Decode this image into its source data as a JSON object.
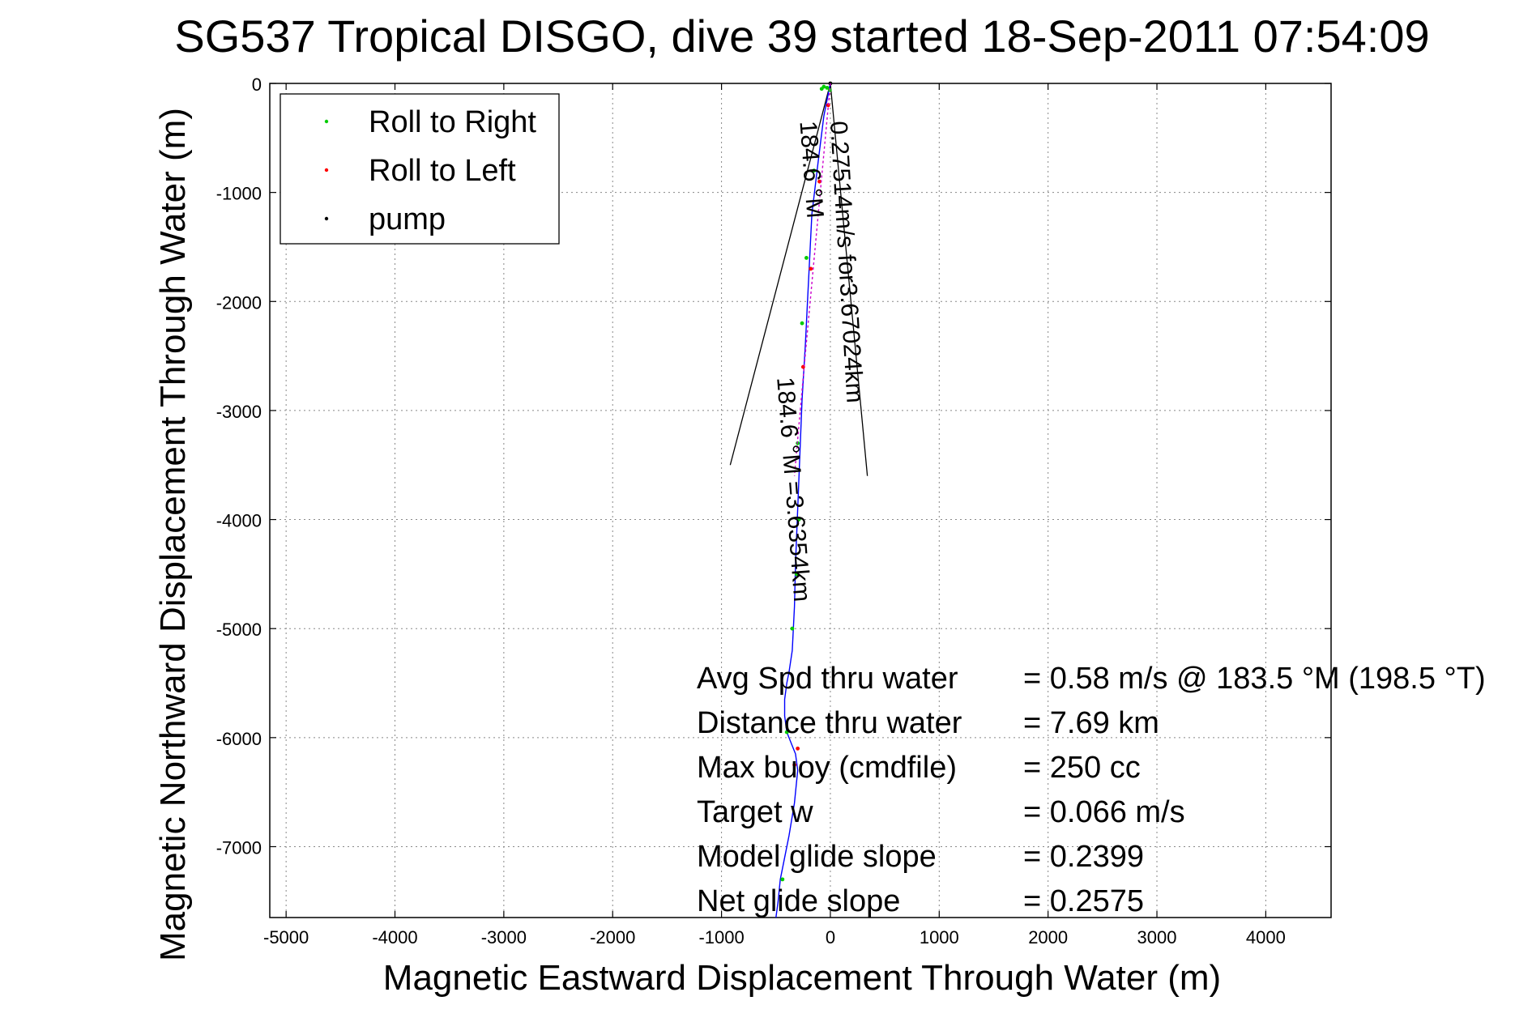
{
  "chart_data": {
    "type": "line",
    "title": "SG537 Tropical DISGO, dive 39 started 18-Sep-2011 07:54:09",
    "xlabel": "Magnetic Eastward Displacement Through Water (m)",
    "ylabel": "Magnetic Northward Displacement Through Water (m)",
    "xlim": [
      -5150,
      4600
    ],
    "ylim": [
      -7650,
      0
    ],
    "xticks": [
      -5000,
      -4000,
      -3000,
      -2000,
      -1000,
      0,
      1000,
      2000,
      3000,
      4000
    ],
    "yticks": [
      0,
      -1000,
      -2000,
      -3000,
      -4000,
      -5000,
      -6000,
      -7000
    ],
    "grid": true,
    "legend_position": "top-left",
    "series": [
      {
        "name": "track",
        "color": "#0000ff",
        "x": [
          0,
          -60,
          -110,
          -170,
          -200,
          -230,
          -260,
          -280,
          -300,
          -320,
          -330,
          -350,
          -380,
          -400,
          -420,
          -420,
          -400,
          -360,
          -320,
          -300,
          -330,
          -380,
          -420,
          -460,
          -480,
          -500
        ],
        "y": [
          0,
          -300,
          -700,
          -1200,
          -1800,
          -2400,
          -2900,
          -3400,
          -3900,
          -4400,
          -4800,
          -5200,
          -5400,
          -5500,
          -5650,
          -5800,
          -5950,
          -6050,
          -6150,
          -6300,
          -6600,
          -6900,
          -7100,
          -7300,
          -7500,
          -7650
        ]
      },
      {
        "name": "Roll to Right",
        "color": "#00cc00",
        "x": [
          -80,
          -60,
          -30,
          -5,
          -150,
          -220,
          -260,
          -300,
          -290,
          -310,
          -350,
          -400,
          -440
        ],
        "y": [
          -50,
          -30,
          -40,
          -60,
          -800,
          -1600,
          -2200,
          -3300,
          -4000,
          -4500,
          -5000,
          -5950,
          -7300
        ],
        "marker": "dot"
      },
      {
        "name": "Roll to Left",
        "color": "#ff0000",
        "x": [
          -20,
          -100,
          -180,
          -250,
          -300,
          -330
        ],
        "y": [
          -200,
          -900,
          -1700,
          -2600,
          -6100,
          -6250
        ],
        "marker": "dot"
      },
      {
        "name": "pump",
        "color": "#000000",
        "x": [
          0
        ],
        "y": [
          0
        ],
        "marker": "dot"
      },
      {
        "name": "current vector",
        "color": "#cc00cc",
        "x": [
          0,
          -130,
          -250,
          -330
        ],
        "y": [
          0,
          -1400,
          -2700,
          -3600
        ]
      }
    ],
    "cone": {
      "apex": [
        0,
        0
      ],
      "left_end": [
        -920,
        -3500
      ],
      "right_end": [
        340,
        -3600
      ]
    },
    "path_labels": [
      {
        "text": "0.27514m/s for3.67024km",
        "x": 0,
        "y": -350,
        "angle": 86.6
      },
      {
        "text": "184.6 °M",
        "x": -280,
        "y": -350,
        "angle": 85.6
      },
      {
        "text": "184.6 °M =3.6354km",
        "x": -490,
        "y": -2700,
        "angle": 85.6
      }
    ],
    "info": [
      {
        "label": "Avg Spd thru water",
        "value": "=  0.58 m/s @ 183.5 °M (198.5 °T)"
      },
      {
        "label": "Distance thru water",
        "value": "=  7.69 km"
      },
      {
        "label": "Max buoy (cmdfile)",
        "value": "= 250 cc"
      },
      {
        "label": "Target w",
        "value": "= 0.066 m/s"
      },
      {
        "label": "Model glide slope",
        "value": "= 0.2399"
      },
      {
        "label": "Net glide slope",
        "value": "= 0.2575"
      }
    ],
    "legend": [
      {
        "label": "Roll to Right",
        "color": "#00cc00"
      },
      {
        "label": "Roll to Left",
        "color": "#ff0000"
      },
      {
        "label": "pump",
        "color": "#000000"
      }
    ]
  }
}
